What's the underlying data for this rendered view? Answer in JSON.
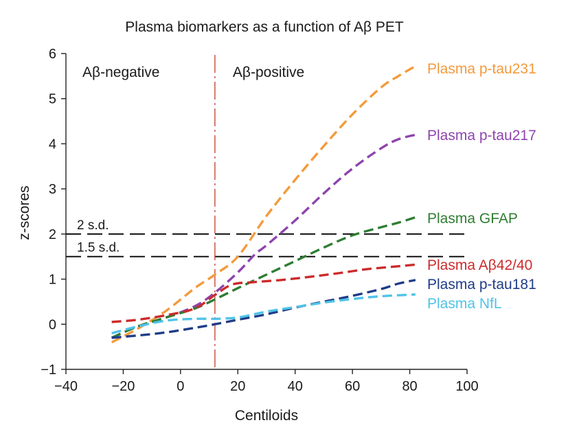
{
  "chart_data": {
    "type": "line",
    "title": "Plasma biomarkers as a function of Aβ PET",
    "xlabel": "Centiloids",
    "ylabel": "z-scores",
    "xlim": [
      -40,
      100
    ],
    "ylim": [
      -1,
      6
    ],
    "xticks": [
      "−40",
      "−20",
      "0",
      "20",
      "40",
      "60",
      "80",
      "100"
    ],
    "yticks": [
      "−1",
      "0",
      "1",
      "2",
      "3",
      "4",
      "5",
      "6"
    ],
    "grid": false,
    "legend": "inline labels at line ends (right)",
    "annotations": {
      "threshold_x": 12,
      "threshold_color": "#c0392b",
      "region_left": "Aβ-negative",
      "region_right": "Aβ-positive",
      "hlines": [
        {
          "y": 2.0,
          "label": "2 s.d."
        },
        {
          "y": 1.5,
          "label": "1.5 s.d."
        }
      ]
    },
    "series": [
      {
        "name": "Plasma p-tau231",
        "color": "#f39a3c",
        "x": [
          -24,
          -15,
          -5,
          5,
          12,
          20,
          30,
          40,
          50,
          60,
          70,
          76,
          82
        ],
        "y": [
          -0.4,
          -0.1,
          0.3,
          0.8,
          1.1,
          1.5,
          2.4,
          3.2,
          3.95,
          4.65,
          5.25,
          5.5,
          5.72
        ]
      },
      {
        "name": "Plasma p-tau217",
        "color": "#8e44ad",
        "x": [
          -24,
          -15,
          -5,
          5,
          12,
          20,
          26,
          30,
          40,
          50,
          60,
          70,
          76,
          82
        ],
        "y": [
          -0.3,
          -0.05,
          0.15,
          0.4,
          0.7,
          1.15,
          1.55,
          1.75,
          2.3,
          2.9,
          3.45,
          3.9,
          4.1,
          4.2
        ]
      },
      {
        "name": "Plasma GFAP",
        "color": "#2e7d32",
        "x": [
          -24,
          -15,
          -5,
          5,
          12,
          20,
          30,
          40,
          50,
          60,
          70,
          76,
          82
        ],
        "y": [
          -0.3,
          -0.05,
          0.15,
          0.35,
          0.55,
          0.8,
          1.1,
          1.4,
          1.7,
          1.97,
          2.15,
          2.25,
          2.37
        ]
      },
      {
        "name": "Plasma Aβ42/40",
        "color": "#cc2b2b",
        "x": [
          -24,
          -15,
          -5,
          5,
          12,
          18,
          25,
          35,
          45,
          55,
          65,
          75,
          82
        ],
        "y": [
          0.05,
          0.1,
          0.2,
          0.35,
          0.65,
          0.88,
          0.93,
          0.98,
          1.05,
          1.13,
          1.22,
          1.28,
          1.32
        ]
      },
      {
        "name": "Plasma p-tau181",
        "color": "#1f3c88",
        "x": [
          -24,
          -15,
          -5,
          5,
          12,
          20,
          30,
          40,
          50,
          60,
          70,
          76,
          82
        ],
        "y": [
          -0.3,
          -0.25,
          -0.18,
          -0.08,
          0.0,
          0.1,
          0.22,
          0.37,
          0.5,
          0.63,
          0.78,
          0.9,
          0.98
        ]
      },
      {
        "name": "Plasma NfL",
        "color": "#4fc3e8",
        "x": [
          -24,
          -15,
          -5,
          5,
          12,
          20,
          30,
          40,
          50,
          60,
          70,
          82
        ],
        "y": [
          -0.2,
          -0.05,
          0.08,
          0.12,
          0.12,
          0.15,
          0.28,
          0.38,
          0.48,
          0.56,
          0.62,
          0.66
        ]
      }
    ]
  }
}
